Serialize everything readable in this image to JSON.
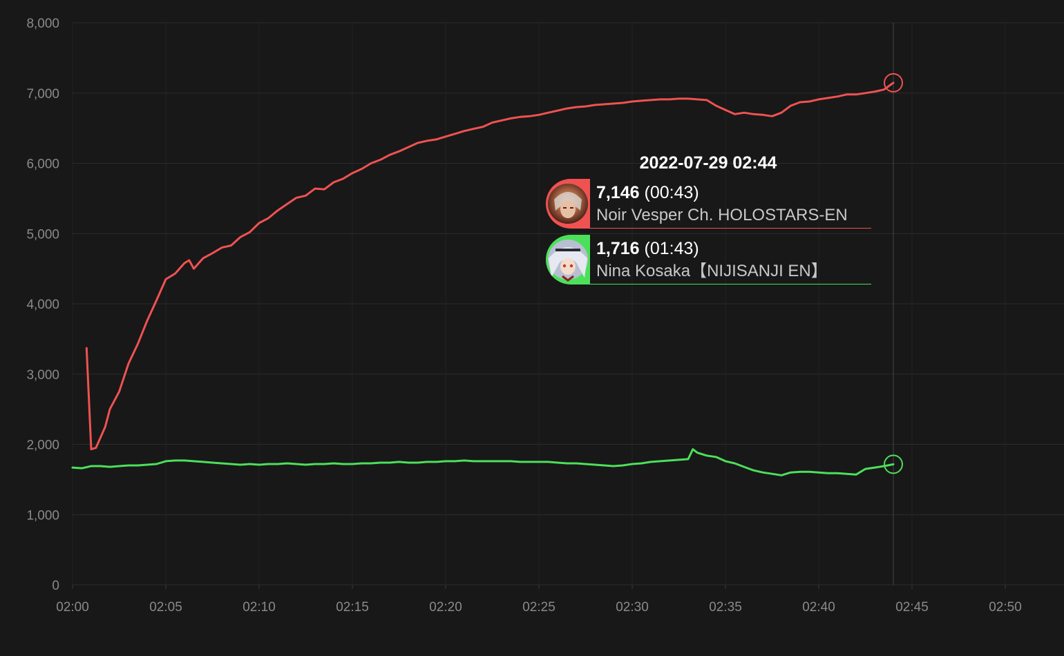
{
  "chart_data": {
    "type": "line",
    "x_start": "02:00",
    "x_ticks": [
      "02:00",
      "02:05",
      "02:10",
      "02:15",
      "02:20",
      "02:25",
      "02:30",
      "02:35",
      "02:40",
      "02:45",
      "02:50"
    ],
    "y_ticks": [
      "0",
      "1,000",
      "2,000",
      "3,000",
      "4,000",
      "5,000",
      "6,000",
      "7,000",
      "8,000"
    ],
    "xlim_minutes": [
      0,
      52
    ],
    "ylim": [
      0,
      8000
    ],
    "grid": true,
    "hover_minute": 44,
    "series": [
      {
        "name": "Noir Vesper Ch. HOLOSTARS-EN",
        "color": "#f05252",
        "x": [
          0.75,
          1,
          1.25,
          1.75,
          2,
          2.5,
          3,
          3.5,
          4,
          4.5,
          5,
          5.5,
          6,
          6.25,
          6.5,
          7,
          7.5,
          8,
          8.5,
          9,
          9.5,
          10,
          10.5,
          11,
          11.5,
          12,
          12.5,
          13,
          13.5,
          14,
          14.5,
          15,
          15.5,
          16,
          16.5,
          17,
          17.5,
          18,
          18.5,
          19,
          19.5,
          20,
          20.5,
          21,
          21.5,
          22,
          22.5,
          23,
          23.5,
          24,
          24.5,
          25,
          25.5,
          26,
          26.5,
          27,
          27.5,
          28,
          28.5,
          29,
          29.5,
          30,
          30.5,
          31,
          31.5,
          32,
          32.5,
          33,
          33.5,
          34,
          34.5,
          35,
          35.5,
          36,
          36.5,
          37,
          37.5,
          38,
          38.5,
          39,
          39.5,
          40,
          40.5,
          41,
          41.5,
          42,
          42.5,
          43,
          43.5,
          44
        ],
        "y": [
          3370,
          1930,
          1950,
          2250,
          2500,
          2750,
          3150,
          3430,
          3760,
          4050,
          4350,
          4430,
          4580,
          4620,
          4500,
          4650,
          4720,
          4800,
          4830,
          4950,
          5020,
          5150,
          5220,
          5330,
          5420,
          5510,
          5540,
          5640,
          5630,
          5730,
          5780,
          5860,
          5920,
          6000,
          6050,
          6120,
          6170,
          6230,
          6290,
          6320,
          6340,
          6380,
          6420,
          6460,
          6490,
          6520,
          6580,
          6610,
          6640,
          6660,
          6670,
          6690,
          6720,
          6750,
          6780,
          6800,
          6810,
          6830,
          6840,
          6850,
          6860,
          6880,
          6890,
          6900,
          6910,
          6910,
          6920,
          6920,
          6910,
          6900,
          6820,
          6760,
          6700,
          6720,
          6700,
          6690,
          6670,
          6720,
          6820,
          6870,
          6880,
          6910,
          6930,
          6950,
          6980,
          6980,
          7000,
          7020,
          7050,
          7146
        ]
      },
      {
        "name": "Nina Kosaka【NIJISANJI EN】",
        "color": "#4ce05a",
        "x": [
          0,
          0.5,
          1,
          1.5,
          2,
          2.5,
          3,
          3.5,
          4,
          4.5,
          5,
          5.5,
          6,
          6.5,
          7,
          7.5,
          8,
          8.5,
          9,
          9.5,
          10,
          10.5,
          11,
          11.5,
          12,
          12.5,
          13,
          13.5,
          14,
          14.5,
          15,
          15.5,
          16,
          16.5,
          17,
          17.5,
          18,
          18.5,
          19,
          19.5,
          20,
          20.5,
          21,
          21.5,
          22,
          22.5,
          23,
          23.5,
          24,
          24.5,
          25,
          25.5,
          26,
          26.5,
          27,
          27.5,
          28,
          28.5,
          29,
          29.5,
          30,
          30.5,
          31,
          31.5,
          32,
          32.5,
          33,
          33.25,
          33.5,
          34,
          34.5,
          35,
          35.5,
          36,
          36.5,
          37,
          37.5,
          38,
          38.5,
          39,
          39.5,
          40,
          40.5,
          41,
          41.5,
          42,
          42.5,
          43,
          43.5,
          44
        ],
        "y": [
          1670,
          1660,
          1690,
          1690,
          1680,
          1690,
          1700,
          1700,
          1710,
          1720,
          1760,
          1770,
          1770,
          1760,
          1750,
          1740,
          1730,
          1720,
          1710,
          1720,
          1710,
          1720,
          1720,
          1730,
          1720,
          1710,
          1720,
          1720,
          1730,
          1720,
          1720,
          1730,
          1730,
          1740,
          1740,
          1750,
          1740,
          1740,
          1750,
          1750,
          1760,
          1760,
          1770,
          1760,
          1760,
          1760,
          1760,
          1760,
          1750,
          1750,
          1750,
          1750,
          1740,
          1730,
          1730,
          1720,
          1710,
          1700,
          1690,
          1700,
          1720,
          1730,
          1750,
          1760,
          1770,
          1780,
          1790,
          1930,
          1880,
          1840,
          1820,
          1760,
          1730,
          1680,
          1630,
          1600,
          1580,
          1560,
          1600,
          1610,
          1610,
          1600,
          1590,
          1590,
          1580,
          1570,
          1650,
          1670,
          1690,
          1716
        ]
      }
    ]
  },
  "tooltip": {
    "title": "2022-07-29 02:44",
    "entries": [
      {
        "value": "7,146",
        "duration": "(00:43)",
        "name": "Noir Vesper Ch. HOLOSTARS-EN",
        "color": "#f05252",
        "icon": "noir-vesper-avatar-icon"
      },
      {
        "value": "1,716",
        "duration": "(01:43)",
        "name": "Nina Kosaka【NIJISANJI EN】",
        "color": "#4ce05a",
        "icon": "nina-kosaka-avatar-icon"
      }
    ]
  },
  "colors": {
    "background": "#181818",
    "grid": "#2c2c2c",
    "tick_text": "#8a8a8a"
  }
}
